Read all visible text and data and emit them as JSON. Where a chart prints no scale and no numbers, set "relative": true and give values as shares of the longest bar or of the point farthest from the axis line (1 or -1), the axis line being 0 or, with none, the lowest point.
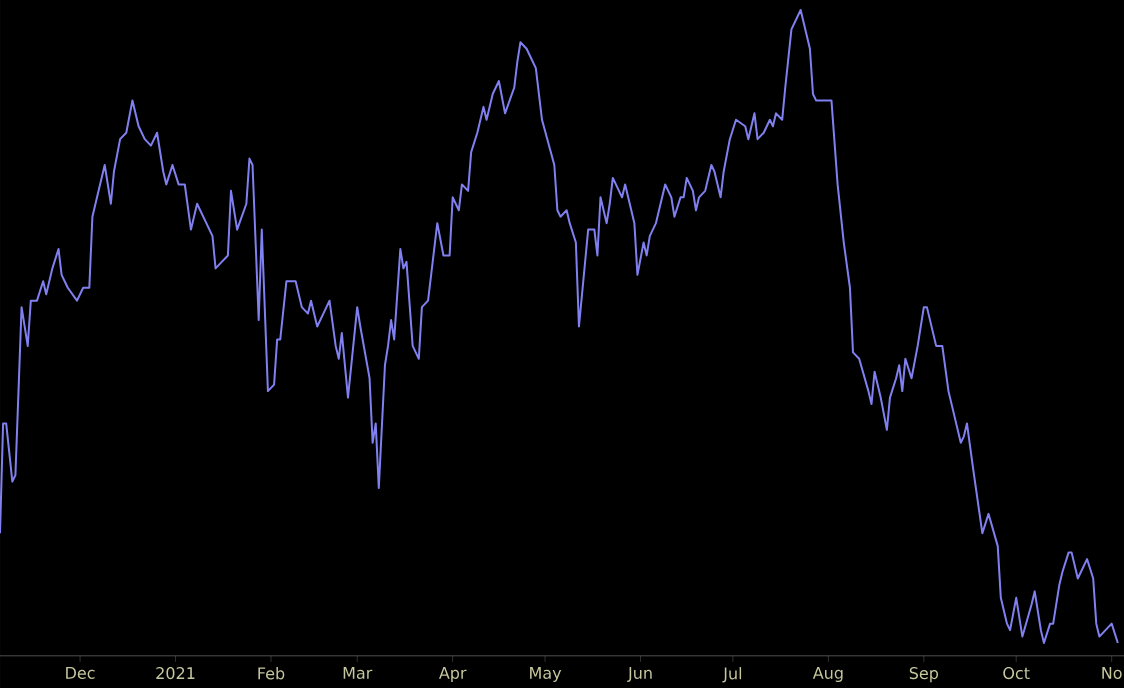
{
  "chart_data": {
    "type": "line",
    "relative": true,
    "color": "#8080f0",
    "xlim": [
      "2020-11-05",
      "2021-11-05"
    ],
    "xticks": [
      {
        "value": "2020-12-01",
        "label": "Dec"
      },
      {
        "value": "2021-01-01",
        "label": "2021"
      },
      {
        "value": "2021-02-01",
        "label": "Feb"
      },
      {
        "value": "2021-03-01",
        "label": "Mar"
      },
      {
        "value": "2021-04-01",
        "label": "Apr"
      },
      {
        "value": "2021-05-01",
        "label": "May"
      },
      {
        "value": "2021-06-01",
        "label": "Jun"
      },
      {
        "value": "2021-07-01",
        "label": "Jul"
      },
      {
        "value": "2021-08-01",
        "label": "Aug"
      },
      {
        "value": "2021-09-01",
        "label": "Sep"
      },
      {
        "value": "2021-10-01",
        "label": "Oct"
      },
      {
        "value": "2021-11-01",
        "label": "No"
      }
    ],
    "x": [
      "2020-11-05",
      "2020-11-06",
      "2020-11-07",
      "2020-11-09",
      "2020-11-10",
      "2020-11-12",
      "2020-11-14",
      "2020-11-15",
      "2020-11-17",
      "2020-11-19",
      "2020-11-20",
      "2020-11-22",
      "2020-11-24",
      "2020-11-25",
      "2020-11-27",
      "2020-11-30",
      "2020-12-02",
      "2020-12-04",
      "2020-12-05",
      "2020-12-07",
      "2020-12-09",
      "2020-12-11",
      "2020-12-12",
      "2020-12-14",
      "2020-12-16",
      "2020-12-18",
      "2020-12-20",
      "2020-12-22",
      "2020-12-24",
      "2020-12-26",
      "2020-12-28",
      "2020-12-29",
      "2020-12-31",
      "2021-01-02",
      "2021-01-04",
      "2021-01-06",
      "2021-01-08",
      "2021-01-11",
      "2021-01-13",
      "2021-01-14",
      "2021-01-16",
      "2021-01-18",
      "2021-01-19",
      "2021-01-21",
      "2021-01-24",
      "2021-01-25",
      "2021-01-26",
      "2021-01-28",
      "2021-01-29",
      "2021-01-31",
      "2021-02-02",
      "2021-02-03",
      "2021-02-04",
      "2021-02-06",
      "2021-02-09",
      "2021-02-11",
      "2021-02-13",
      "2021-02-14",
      "2021-02-16",
      "2021-02-18",
      "2021-02-20",
      "2021-02-22",
      "2021-02-23",
      "2021-02-24",
      "2021-02-26",
      "2021-03-01",
      "2021-03-02",
      "2021-03-05",
      "2021-03-06",
      "2021-03-07",
      "2021-03-08",
      "2021-03-10",
      "2021-03-11",
      "2021-03-12",
      "2021-03-13",
      "2021-03-15",
      "2021-03-16",
      "2021-03-17",
      "2021-03-19",
      "2021-03-21",
      "2021-03-22",
      "2021-03-24",
      "2021-03-25",
      "2021-03-27",
      "2021-03-29",
      "2021-03-31",
      "2021-04-01",
      "2021-04-03",
      "2021-04-04",
      "2021-04-06",
      "2021-04-07",
      "2021-04-09",
      "2021-04-11",
      "2021-04-12",
      "2021-04-14",
      "2021-04-16",
      "2021-04-18",
      "2021-04-21",
      "2021-04-22",
      "2021-04-23",
      "2021-04-25",
      "2021-04-28",
      "2021-04-30",
      "2021-05-04",
      "2021-05-05",
      "2021-05-06",
      "2021-05-08",
      "2021-05-09",
      "2021-05-11",
      "2021-05-12",
      "2021-05-15",
      "2021-05-17",
      "2021-05-18",
      "2021-05-19",
      "2021-05-21",
      "2021-05-22",
      "2021-05-23",
      "2021-05-25",
      "2021-05-26",
      "2021-05-27",
      "2021-05-29",
      "2021-05-30",
      "2021-05-31",
      "2021-06-02",
      "2021-06-03",
      "2021-06-04",
      "2021-06-06",
      "2021-06-07",
      "2021-06-09",
      "2021-06-11",
      "2021-06-12",
      "2021-06-14",
      "2021-06-15",
      "2021-06-16",
      "2021-06-18",
      "2021-06-19",
      "2021-06-20",
      "2021-06-22",
      "2021-06-24",
      "2021-06-25",
      "2021-06-27",
      "2021-06-28",
      "2021-06-30",
      "2021-07-02",
      "2021-07-05",
      "2021-07-06",
      "2021-07-08",
      "2021-07-09",
      "2021-07-11",
      "2021-07-13",
      "2021-07-14",
      "2021-07-15",
      "2021-07-17",
      "2021-07-18",
      "2021-07-20",
      "2021-07-23",
      "2021-07-26",
      "2021-07-27",
      "2021-07-28",
      "2021-07-31",
      "2021-08-02",
      "2021-08-04",
      "2021-08-06",
      "2021-08-08",
      "2021-08-09",
      "2021-08-11",
      "2021-08-14",
      "2021-08-15",
      "2021-08-16",
      "2021-08-18",
      "2021-08-20",
      "2021-08-21",
      "2021-08-23",
      "2021-08-24",
      "2021-08-25",
      "2021-08-26",
      "2021-08-28",
      "2021-08-30",
      "2021-09-01",
      "2021-09-02",
      "2021-09-05",
      "2021-09-07",
      "2021-09-09",
      "2021-09-12",
      "2021-09-13",
      "2021-09-14",
      "2021-09-15",
      "2021-09-17",
      "2021-09-20",
      "2021-09-22",
      "2021-09-25",
      "2021-09-26",
      "2021-09-28",
      "2021-09-29",
      "2021-10-01",
      "2021-10-03",
      "2021-10-06",
      "2021-10-07",
      "2021-10-09",
      "2021-10-10",
      "2021-10-12",
      "2021-10-13",
      "2021-10-15",
      "2021-10-16",
      "2021-10-18",
      "2021-10-19",
      "2021-10-21",
      "2021-10-24",
      "2021-10-26",
      "2021-10-27",
      "2021-10-28",
      "2021-10-30",
      "2021-11-01",
      "2021-11-03"
    ],
    "values": [
      0.19,
      0.36,
      0.36,
      0.27,
      0.28,
      0.54,
      0.48,
      0.55,
      0.55,
      0.58,
      0.56,
      0.6,
      0.63,
      0.59,
      0.57,
      0.55,
      0.57,
      0.57,
      0.68,
      0.72,
      0.76,
      0.7,
      0.75,
      0.8,
      0.81,
      0.86,
      0.82,
      0.8,
      0.79,
      0.81,
      0.75,
      0.73,
      0.76,
      0.73,
      0.73,
      0.66,
      0.7,
      0.67,
      0.65,
      0.6,
      0.61,
      0.62,
      0.72,
      0.66,
      0.7,
      0.77,
      0.76,
      0.52,
      0.66,
      0.41,
      0.42,
      0.49,
      0.49,
      0.58,
      0.58,
      0.54,
      0.53,
      0.55,
      0.51,
      0.53,
      0.55,
      0.48,
      0.46,
      0.5,
      0.4,
      0.54,
      0.51,
      0.43,
      0.33,
      0.36,
      0.26,
      0.45,
      0.48,
      0.52,
      0.49,
      0.63,
      0.6,
      0.61,
      0.48,
      0.46,
      0.54,
      0.55,
      0.59,
      0.67,
      0.62,
      0.62,
      0.71,
      0.69,
      0.73,
      0.72,
      0.78,
      0.81,
      0.85,
      0.83,
      0.87,
      0.89,
      0.84,
      0.88,
      0.92,
      0.95,
      0.94,
      0.91,
      0.83,
      0.76,
      0.69,
      0.68,
      0.69,
      0.67,
      0.64,
      0.51,
      0.66,
      0.66,
      0.62,
      0.71,
      0.67,
      0.7,
      0.74,
      0.72,
      0.71,
      0.73,
      0.69,
      0.67,
      0.59,
      0.64,
      0.62,
      0.65,
      0.67,
      0.69,
      0.73,
      0.71,
      0.68,
      0.71,
      0.71,
      0.74,
      0.72,
      0.69,
      0.71,
      0.72,
      0.76,
      0.75,
      0.71,
      0.75,
      0.8,
      0.83,
      0.82,
      0.8,
      0.84,
      0.8,
      0.81,
      0.83,
      0.82,
      0.84,
      0.83,
      0.88,
      0.97,
      1.0,
      0.94,
      0.87,
      0.86,
      0.86,
      0.86,
      0.73,
      0.64,
      0.57,
      0.47,
      0.46,
      0.41,
      0.39,
      0.44,
      0.4,
      0.35,
      0.4,
      0.43,
      0.45,
      0.41,
      0.46,
      0.43,
      0.48,
      0.54,
      0.54,
      0.48,
      0.48,
      0.41,
      0.35,
      0.33,
      0.34,
      0.36,
      0.29,
      0.19,
      0.22,
      0.17,
      0.09,
      0.05,
      0.04,
      0.09,
      0.03,
      0.08,
      0.1,
      0.04,
      0.02,
      0.05,
      0.05,
      0.11,
      0.13,
      0.16,
      0.16,
      0.12,
      0.15,
      0.12,
      0.05,
      0.03,
      0.04,
      0.05,
      0.02
    ]
  }
}
